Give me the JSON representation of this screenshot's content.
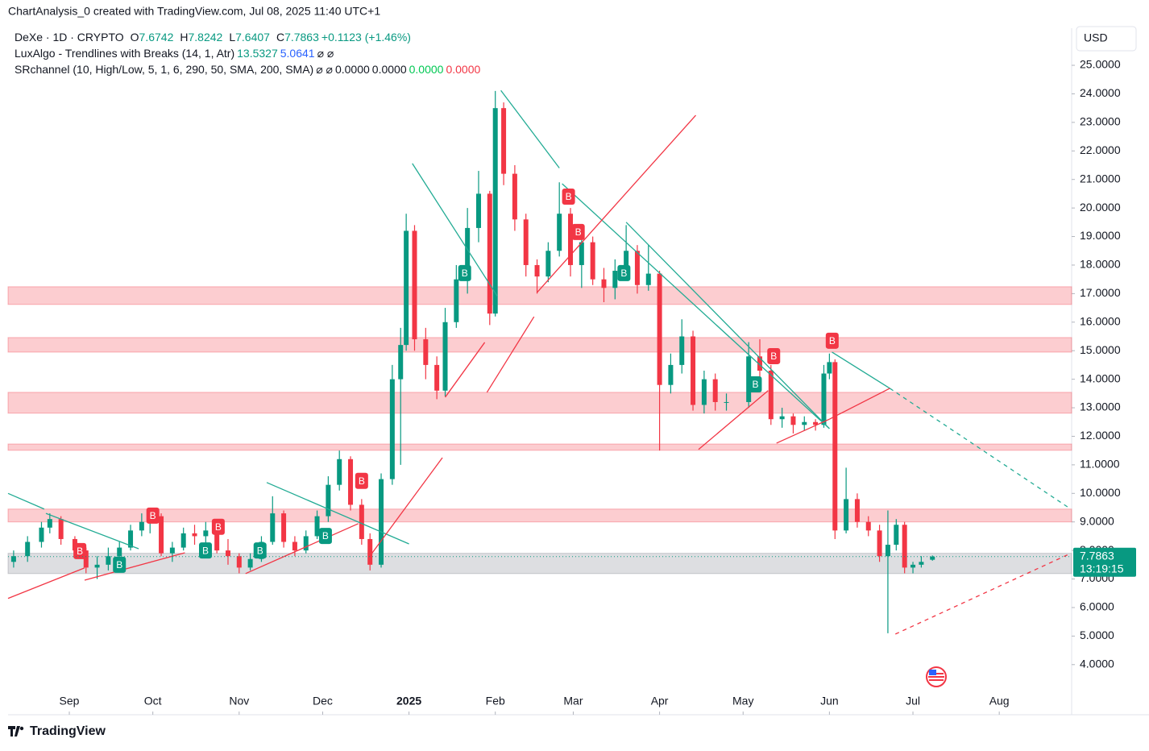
{
  "header": {
    "credit": "ChartAnalysis_0 created with TradingView.com, Jul 08, 2025 11:40 UTC+1",
    "brand": "TradingView",
    "currency": "USD",
    "countdown": "13:19:15"
  },
  "legend": [
    {
      "items": [
        {
          "text": "DeXe · 1D · CRYPTO",
          "color": "#131722"
        },
        {
          "text": "O",
          "color": "#131722"
        },
        {
          "bind": "chart_data.candles.86.1",
          "color": "#089981"
        },
        {
          "text": "H",
          "color": "#131722"
        },
        {
          "bind": "chart_data.candles.86.2",
          "color": "#089981"
        },
        {
          "text": "L",
          "color": "#131722"
        },
        {
          "bind": "chart_data.candles.86.3",
          "color": "#089981"
        },
        {
          "text": "C",
          "color": "#131722"
        },
        {
          "bind": "chart_data.candles.86.4",
          "color": "#089981"
        },
        {
          "text": "+0.1123 (+1.46%)",
          "color": "#089981"
        }
      ]
    },
    {
      "items": [
        {
          "text": "LuxAlgo - Trendlines with Breaks (14, 1, Atr)",
          "color": "#131722"
        },
        {
          "text": "13.5327",
          "color": "#089981"
        },
        {
          "text": "5.0641",
          "color": "#2962ff"
        },
        {
          "text": "⌀ ⌀",
          "color": "#131722"
        }
      ]
    },
    {
      "items": [
        {
          "text": "SRchannel (10, High/Low, 5, 1, 6, 290, 50, SMA, 200, SMA)",
          "color": "#131722"
        },
        {
          "text": "⌀ ⌀",
          "color": "#131722"
        },
        {
          "text": "0.0000",
          "color": "#131722"
        },
        {
          "text": "0.0000",
          "color": "#131722"
        },
        {
          "text": "0.0000",
          "color": "#00c853"
        },
        {
          "text": "0.0000",
          "color": "#f23645"
        }
      ]
    }
  ],
  "chart_data": {
    "type": "candlestick",
    "up_color": "#089981",
    "down_color": "#f23645",
    "xlim": [
      -22,
      360
    ],
    "ylim": [
      2.3,
      26.3
    ],
    "xticks": [
      {
        "value": 0,
        "label": "Sep"
      },
      {
        "value": 30,
        "label": "Oct"
      },
      {
        "value": 61,
        "label": "Nov"
      },
      {
        "value": 91,
        "label": "Dec"
      },
      {
        "value": 122,
        "label": "2025"
      },
      {
        "value": 153,
        "label": "Feb"
      },
      {
        "value": 181,
        "label": "Mar"
      },
      {
        "value": 212,
        "label": "Apr"
      },
      {
        "value": 242,
        "label": "May"
      },
      {
        "value": 273,
        "label": "Jun"
      },
      {
        "value": 303,
        "label": "Jul"
      },
      {
        "value": 334,
        "label": "Aug"
      }
    ],
    "yticks": [
      {
        "value": 4,
        "label": "4.0000"
      },
      {
        "value": 5,
        "label": "5.0000"
      },
      {
        "value": 6,
        "label": "6.0000"
      },
      {
        "value": 7,
        "label": "7.0000"
      },
      {
        "value": 8,
        "label": "8.0000"
      },
      {
        "value": 9,
        "label": "9.0000"
      },
      {
        "value": 10,
        "label": "10.0000"
      },
      {
        "value": 11,
        "label": "11.0000"
      },
      {
        "value": 12,
        "label": "12.0000"
      },
      {
        "value": 13,
        "label": "13.0000"
      },
      {
        "value": 14,
        "label": "14.0000"
      },
      {
        "value": 15,
        "label": "15.0000"
      },
      {
        "value": 16,
        "label": "16.0000"
      },
      {
        "value": 17,
        "label": "17.0000"
      },
      {
        "value": 18,
        "label": "18.0000"
      },
      {
        "value": 19,
        "label": "19.0000"
      },
      {
        "value": 20,
        "label": "20.0000"
      },
      {
        "value": 21,
        "label": "21.0000"
      },
      {
        "value": 22,
        "label": "22.0000"
      },
      {
        "value": 23,
        "label": "23.0000"
      },
      {
        "value": 24,
        "label": "24.0000"
      },
      {
        "value": 25,
        "label": "25.0000"
      }
    ],
    "zones": [
      {
        "bottom": 16.62,
        "top": 17.24,
        "color": "#f23645"
      },
      {
        "bottom": 14.95,
        "top": 15.46,
        "color": "#f23645"
      },
      {
        "bottom": 12.81,
        "top": 13.54,
        "color": "#f23645"
      },
      {
        "bottom": 11.51,
        "top": 11.73,
        "color": "#f23645"
      },
      {
        "bottom": 9.0,
        "top": 9.45,
        "color": "#f23645"
      },
      {
        "bottom": 7.19,
        "top": 7.9,
        "color": "#787b86"
      }
    ],
    "candles": [
      [
        -20,
        7.6,
        8.0,
        7.4,
        7.8
      ],
      [
        -15,
        7.8,
        8.5,
        7.6,
        8.3
      ],
      [
        -10,
        8.3,
        9.0,
        8.1,
        8.8
      ],
      [
        -7,
        8.8,
        9.3,
        8.6,
        9.1
      ],
      [
        -3,
        9.1,
        9.2,
        8.2,
        8.4
      ],
      [
        2,
        8.4,
        8.5,
        7.8,
        8.0
      ],
      [
        6,
        8.0,
        8.1,
        7.2,
        7.4
      ],
      [
        10,
        7.4,
        7.8,
        7.0,
        7.5
      ],
      [
        14,
        7.5,
        8.1,
        7.3,
        7.8
      ],
      [
        18,
        7.8,
        8.3,
        7.5,
        8.1
      ],
      [
        22,
        8.1,
        8.9,
        8.0,
        8.7
      ],
      [
        26,
        8.7,
        9.3,
        8.5,
        9.0
      ],
      [
        29,
        9.0,
        9.5,
        8.6,
        9.2
      ],
      [
        33,
        9.2,
        9.3,
        7.8,
        7.9
      ],
      [
        37,
        7.9,
        8.3,
        7.6,
        8.1
      ],
      [
        41,
        8.1,
        8.8,
        8.0,
        8.6
      ],
      [
        45,
        8.6,
        8.9,
        8.2,
        8.5
      ],
      [
        49,
        8.5,
        9.0,
        8.0,
        8.7
      ],
      [
        53,
        8.7,
        8.8,
        7.9,
        8.0
      ],
      [
        57,
        8.0,
        8.4,
        7.5,
        7.8
      ],
      [
        61,
        7.8,
        7.9,
        7.2,
        7.4
      ],
      [
        65,
        7.4,
        7.9,
        7.3,
        7.7
      ],
      [
        69,
        7.7,
        8.5,
        7.6,
        8.3
      ],
      [
        73,
        8.3,
        9.9,
        8.2,
        9.3
      ],
      [
        77,
        9.3,
        9.4,
        8.1,
        8.3
      ],
      [
        81,
        8.3,
        8.5,
        7.8,
        8.0
      ],
      [
        85,
        8.0,
        8.7,
        7.9,
        8.5
      ],
      [
        89,
        8.5,
        9.4,
        8.4,
        9.2
      ],
      [
        93,
        9.2,
        10.6,
        9.0,
        10.3
      ],
      [
        97,
        10.3,
        11.5,
        10.1,
        11.2
      ],
      [
        101,
        11.2,
        11.3,
        9.4,
        9.6
      ],
      [
        105,
        9.6,
        9.8,
        8.2,
        8.4
      ],
      [
        108,
        8.4,
        8.6,
        7.3,
        7.5
      ],
      [
        112,
        7.5,
        10.7,
        7.4,
        10.5
      ],
      [
        116,
        10.5,
        14.5,
        10.3,
        14.0
      ],
      [
        119,
        14.0,
        15.8,
        11.0,
        15.2
      ],
      [
        121,
        15.2,
        19.8,
        15.0,
        19.2
      ],
      [
        124,
        19.2,
        19.4,
        15.0,
        15.4
      ],
      [
        128,
        15.4,
        15.8,
        14.0,
        14.5
      ],
      [
        132,
        14.5,
        14.8,
        13.3,
        13.6
      ],
      [
        135,
        13.6,
        16.5,
        13.4,
        16.0
      ],
      [
        139,
        16.0,
        18.0,
        15.8,
        17.5
      ],
      [
        143,
        17.5,
        20.0,
        17.0,
        19.3
      ],
      [
        147,
        19.3,
        21.3,
        18.8,
        20.5
      ],
      [
        151,
        20.5,
        20.6,
        15.9,
        16.3
      ],
      [
        153,
        16.3,
        24.1,
        16.2,
        23.5
      ],
      [
        156,
        23.5,
        23.7,
        20.8,
        21.2
      ],
      [
        160,
        21.2,
        21.5,
        19.2,
        19.6
      ],
      [
        164,
        19.6,
        19.8,
        17.6,
        18.0
      ],
      [
        168,
        18.0,
        18.2,
        17.0,
        17.6
      ],
      [
        172,
        17.6,
        18.8,
        17.4,
        18.5
      ],
      [
        176,
        18.5,
        20.9,
        18.3,
        19.8
      ],
      [
        180,
        19.8,
        20.0,
        17.6,
        18.0
      ],
      [
        184,
        18.0,
        19.1,
        17.2,
        18.8
      ],
      [
        188,
        18.8,
        19.0,
        17.3,
        17.5
      ],
      [
        192,
        17.5,
        17.9,
        16.7,
        17.2
      ],
      [
        196,
        17.2,
        18.2,
        16.8,
        17.8
      ],
      [
        200,
        17.8,
        19.4,
        17.6,
        18.5
      ],
      [
        204,
        18.5,
        18.7,
        17.0,
        17.3
      ],
      [
        208,
        17.3,
        18.7,
        17.1,
        17.7
      ],
      [
        212,
        17.7,
        17.8,
        11.5,
        13.8
      ],
      [
        216,
        13.8,
        14.9,
        13.5,
        14.5
      ],
      [
        220,
        14.5,
        16.1,
        14.2,
        15.5
      ],
      [
        224,
        15.5,
        15.7,
        12.9,
        13.1
      ],
      [
        228,
        13.1,
        14.3,
        12.8,
        14.0
      ],
      [
        232,
        14.0,
        14.2,
        12.9,
        13.2
      ],
      [
        236,
        13.2,
        13.5,
        12.9,
        13.2
      ],
      [
        244,
        13.2,
        15.3,
        13.0,
        14.8
      ],
      [
        248,
        14.8,
        15.4,
        14.0,
        14.3
      ],
      [
        252,
        14.3,
        14.5,
        12.4,
        12.6
      ],
      [
        256,
        12.6,
        13.0,
        12.3,
        12.7
      ],
      [
        260,
        12.7,
        12.8,
        12.1,
        12.4
      ],
      [
        264,
        12.4,
        12.7,
        12.2,
        12.5
      ],
      [
        268,
        12.5,
        12.6,
        12.2,
        12.4
      ],
      [
        271,
        12.4,
        14.5,
        12.3,
        14.2
      ],
      [
        273,
        14.2,
        14.9,
        14.0,
        14.6
      ],
      [
        275,
        14.6,
        14.7,
        8.4,
        8.7
      ],
      [
        279,
        8.7,
        10.9,
        8.6,
        9.8
      ],
      [
        283,
        9.8,
        10.0,
        8.8,
        9.0
      ],
      [
        287,
        9.0,
        9.2,
        8.5,
        8.7
      ],
      [
        291,
        8.7,
        8.9,
        7.6,
        7.8
      ],
      [
        294,
        7.8,
        9.4,
        5.1,
        8.2
      ],
      [
        297,
        8.2,
        9.1,
        8.0,
        8.9
      ],
      [
        300,
        8.9,
        9.0,
        7.2,
        7.4
      ],
      [
        303,
        7.4,
        7.6,
        7.2,
        7.5
      ],
      [
        306,
        7.5,
        7.8,
        7.4,
        7.6
      ],
      [
        310,
        7.6742,
        7.8242,
        7.6407,
        7.7863
      ]
    ],
    "trendlines": [
      {
        "color": "#22ab94",
        "dashed": false,
        "points": [
          [
            -22,
            10.0
          ],
          [
            -9,
            9.45
          ]
        ]
      },
      {
        "color": "#22ab94",
        "dashed": false,
        "points": [
          [
            -8.4,
            9.3
          ],
          [
            24.9,
            8.06
          ]
        ]
      },
      {
        "color": "#22ab94",
        "dashed": false,
        "points": [
          [
            70.9,
            10.38
          ],
          [
            122,
            8.23
          ]
        ]
      },
      {
        "color": "#22ab94",
        "dashed": false,
        "points": [
          [
            123.2,
            21.56
          ],
          [
            153.8,
            16.9
          ]
        ]
      },
      {
        "color": "#22ab94",
        "dashed": false,
        "points": [
          [
            155,
            24.12
          ],
          [
            176,
            21.4
          ]
        ]
      },
      {
        "color": "#22ab94",
        "dashed": false,
        "points": [
          [
            177,
            20.85
          ],
          [
            273,
            12.27
          ]
        ]
      },
      {
        "color": "#22ab94",
        "dashed": false,
        "points": [
          [
            200,
            19.5
          ],
          [
            273,
            12.27
          ]
        ]
      },
      {
        "color": "#22ab94",
        "dashed": false,
        "points": [
          [
            273.9,
            14.95
          ],
          [
            294.7,
            13.68
          ]
        ]
      },
      {
        "color": "#22ab94",
        "dashed": true,
        "points": [
          [
            294.7,
            13.68
          ],
          [
            359.7,
            9.45
          ]
        ]
      },
      {
        "color": "#f23645",
        "dashed": false,
        "points": [
          [
            -22,
            6.32
          ],
          [
            5.5,
            7.39
          ]
        ]
      },
      {
        "color": "#f23645",
        "dashed": false,
        "points": [
          [
            5.5,
            6.96
          ],
          [
            41.5,
            7.92
          ]
        ]
      },
      {
        "color": "#f23645",
        "dashed": false,
        "points": [
          [
            63.3,
            7.19
          ],
          [
            103.8,
            8.94
          ]
        ]
      },
      {
        "color": "#f23645",
        "dashed": false,
        "points": [
          [
            108,
            7.81
          ],
          [
            134,
            11.25
          ]
        ]
      },
      {
        "color": "#f23645",
        "dashed": false,
        "points": [
          [
            135,
            13.37
          ],
          [
            149.2,
            15.29
          ]
        ]
      },
      {
        "color": "#f23645",
        "dashed": false,
        "points": [
          [
            150,
            13.54
          ],
          [
            166.9,
            16.19
          ]
        ]
      },
      {
        "color": "#f23645",
        "dashed": false,
        "points": [
          [
            168,
            17.04
          ],
          [
            225,
            23.25
          ]
        ]
      },
      {
        "color": "#f23645",
        "dashed": false,
        "points": [
          [
            226,
            11.54
          ],
          [
            251,
            13.6
          ]
        ]
      },
      {
        "color": "#f23645",
        "dashed": false,
        "points": [
          [
            254,
            11.76
          ],
          [
            273,
            12.6
          ]
        ]
      },
      {
        "color": "#f23645",
        "dashed": false,
        "points": [
          [
            273,
            12.6
          ],
          [
            294.7,
            13.68
          ]
        ]
      },
      {
        "color": "#f23645",
        "dashed": true,
        "points": [
          [
            296.7,
            5.07
          ],
          [
            359.7,
            7.9
          ]
        ]
      }
    ],
    "signals": [
      {
        "x": 3.8,
        "y": 7.98,
        "label": "B",
        "color": "#f23645"
      },
      {
        "x": 30,
        "y": 9.22,
        "label": "B",
        "color": "#f23645"
      },
      {
        "x": 53.5,
        "y": 8.83,
        "label": "B",
        "color": "#f23645"
      },
      {
        "x": 105,
        "y": 10.44,
        "label": "B",
        "color": "#f23645"
      },
      {
        "x": 179.3,
        "y": 20.4,
        "label": "B",
        "color": "#f23645"
      },
      {
        "x": 182.8,
        "y": 19.16,
        "label": "B",
        "color": "#f23645"
      },
      {
        "x": 253,
        "y": 14.81,
        "label": "B",
        "color": "#f23645"
      },
      {
        "x": 274,
        "y": 15.35,
        "label": "B",
        "color": "#f23645"
      },
      {
        "x": 18,
        "y": 7.5,
        "label": "B",
        "color": "#089981"
      },
      {
        "x": 48.9,
        "y": 8.0,
        "label": "B",
        "color": "#089981"
      },
      {
        "x": 68.5,
        "y": 8.0,
        "label": "B",
        "color": "#089981"
      },
      {
        "x": 92,
        "y": 8.51,
        "label": "B",
        "color": "#089981"
      },
      {
        "x": 142,
        "y": 17.72,
        "label": "B",
        "color": "#089981"
      },
      {
        "x": 199.2,
        "y": 17.72,
        "label": "B",
        "color": "#089981"
      },
      {
        "x": 246.4,
        "y": 13.82,
        "label": "B",
        "color": "#089981"
      }
    ]
  }
}
